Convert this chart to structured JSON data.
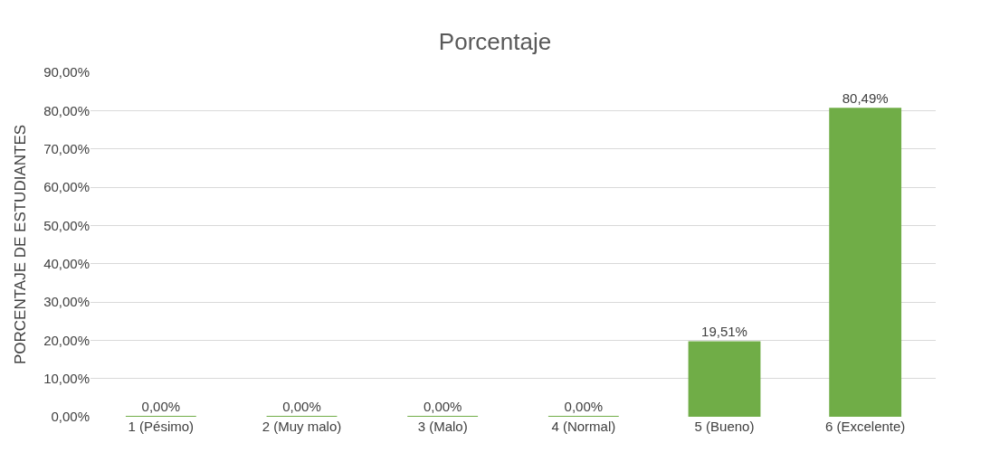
{
  "chart_data": {
    "type": "bar",
    "title": "Porcentaje",
    "ylabel": "PORCENTAJE DE ESTUDIANTES",
    "categories": [
      "1 (Pésimo)",
      "2 (Muy malo)",
      "3 (Malo)",
      "4 (Normal)",
      "5 (Bueno)",
      "6 (Excelente)"
    ],
    "values": [
      0,
      0,
      0,
      0,
      19.51,
      80.49
    ],
    "value_labels": [
      "0,00%",
      "0,00%",
      "0,00%",
      "0,00%",
      "19,51%",
      "80,49%"
    ],
    "color": "#70ad47",
    "ylim": [
      0,
      90
    ],
    "yticks": [
      {
        "value": 0,
        "label": "0,00%"
      },
      {
        "value": 10,
        "label": "10,00%"
      },
      {
        "value": 20,
        "label": "20,00%"
      },
      {
        "value": 30,
        "label": "30,00%"
      },
      {
        "value": 40,
        "label": "40,00%"
      },
      {
        "value": 50,
        "label": "50,00%"
      },
      {
        "value": 60,
        "label": "60,00%"
      },
      {
        "value": 70,
        "label": "70,00%"
      },
      {
        "value": 80,
        "label": "80,00%"
      },
      {
        "value": 90,
        "label": "90,00%"
      }
    ],
    "grid": "y"
  }
}
